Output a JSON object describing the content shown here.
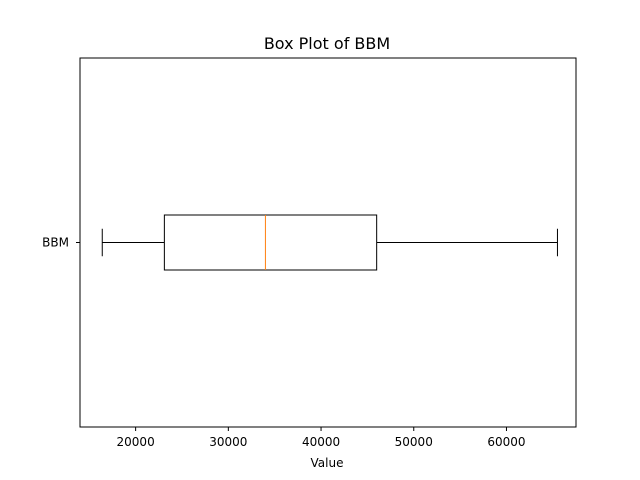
{
  "chart_data": {
    "type": "box",
    "orientation": "horizontal",
    "title": "Box Plot of BBM",
    "xlabel": "Value",
    "ylabel": "",
    "xlim": [
      14000,
      67500
    ],
    "x_ticks": [
      20000,
      30000,
      40000,
      50000,
      60000
    ],
    "x_tick_labels": [
      "20000",
      "30000",
      "40000",
      "50000",
      "60000"
    ],
    "series": [
      {
        "name": "BBM",
        "whisker_low": 16400,
        "q1": 23100,
        "median": 34000,
        "q3": 46000,
        "whisker_high": 65500
      }
    ],
    "grid": false,
    "colors": {
      "box": "#000000",
      "median": "#ff7f0e",
      "axes": "#000000"
    }
  }
}
